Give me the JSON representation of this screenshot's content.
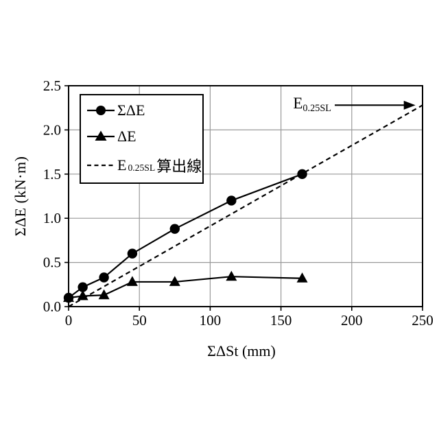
{
  "chart_data": {
    "type": "line",
    "title": "",
    "xlabel": "ΣΔSt (mm)",
    "ylabel": "ΣΔE (kN·m)",
    "xlim": [
      0,
      250
    ],
    "ylim": [
      0,
      2.5
    ],
    "xtick_labels": [
      "0",
      "50",
      "100",
      "150",
      "200",
      "250"
    ],
    "ytick_labels": [
      "0.0",
      "0.5",
      "1.0",
      "1.5",
      "2.0",
      "2.5"
    ],
    "grid": true,
    "grid_color": "#999999",
    "line_color": "#000000",
    "legend_position": "upper-left-inside",
    "series": [
      {
        "name": "ΣΔE",
        "marker": "circle",
        "line": "solid",
        "x": [
          0,
          10,
          25,
          45,
          75,
          115,
          165
        ],
        "y": [
          0.1,
          0.22,
          0.33,
          0.6,
          0.88,
          1.2,
          1.5
        ]
      },
      {
        "name": "ΔE",
        "marker": "triangle",
        "line": "solid",
        "x": [
          0,
          10,
          25,
          45,
          75,
          115,
          165
        ],
        "y": [
          0.1,
          0.12,
          0.13,
          0.28,
          0.28,
          0.34,
          0.32
        ]
      },
      {
        "name": "E0.25SL算出線",
        "marker": "none",
        "line": "dashed",
        "x": [
          0,
          250
        ],
        "y": [
          0,
          2.28
        ]
      }
    ]
  },
  "legend": {
    "items": [
      {
        "pre": "ΣΔE"
      },
      {
        "pre": "ΔE"
      },
      {
        "pre": "E",
        "sub": "0.25SL",
        "post": "算出線"
      }
    ]
  },
  "annotation": {
    "pre": "E",
    "sub": "0.25SL",
    "arrow_direction": "right",
    "arrow_x_data": [
      188,
      245
    ],
    "arrow_y_data": 2.28
  }
}
